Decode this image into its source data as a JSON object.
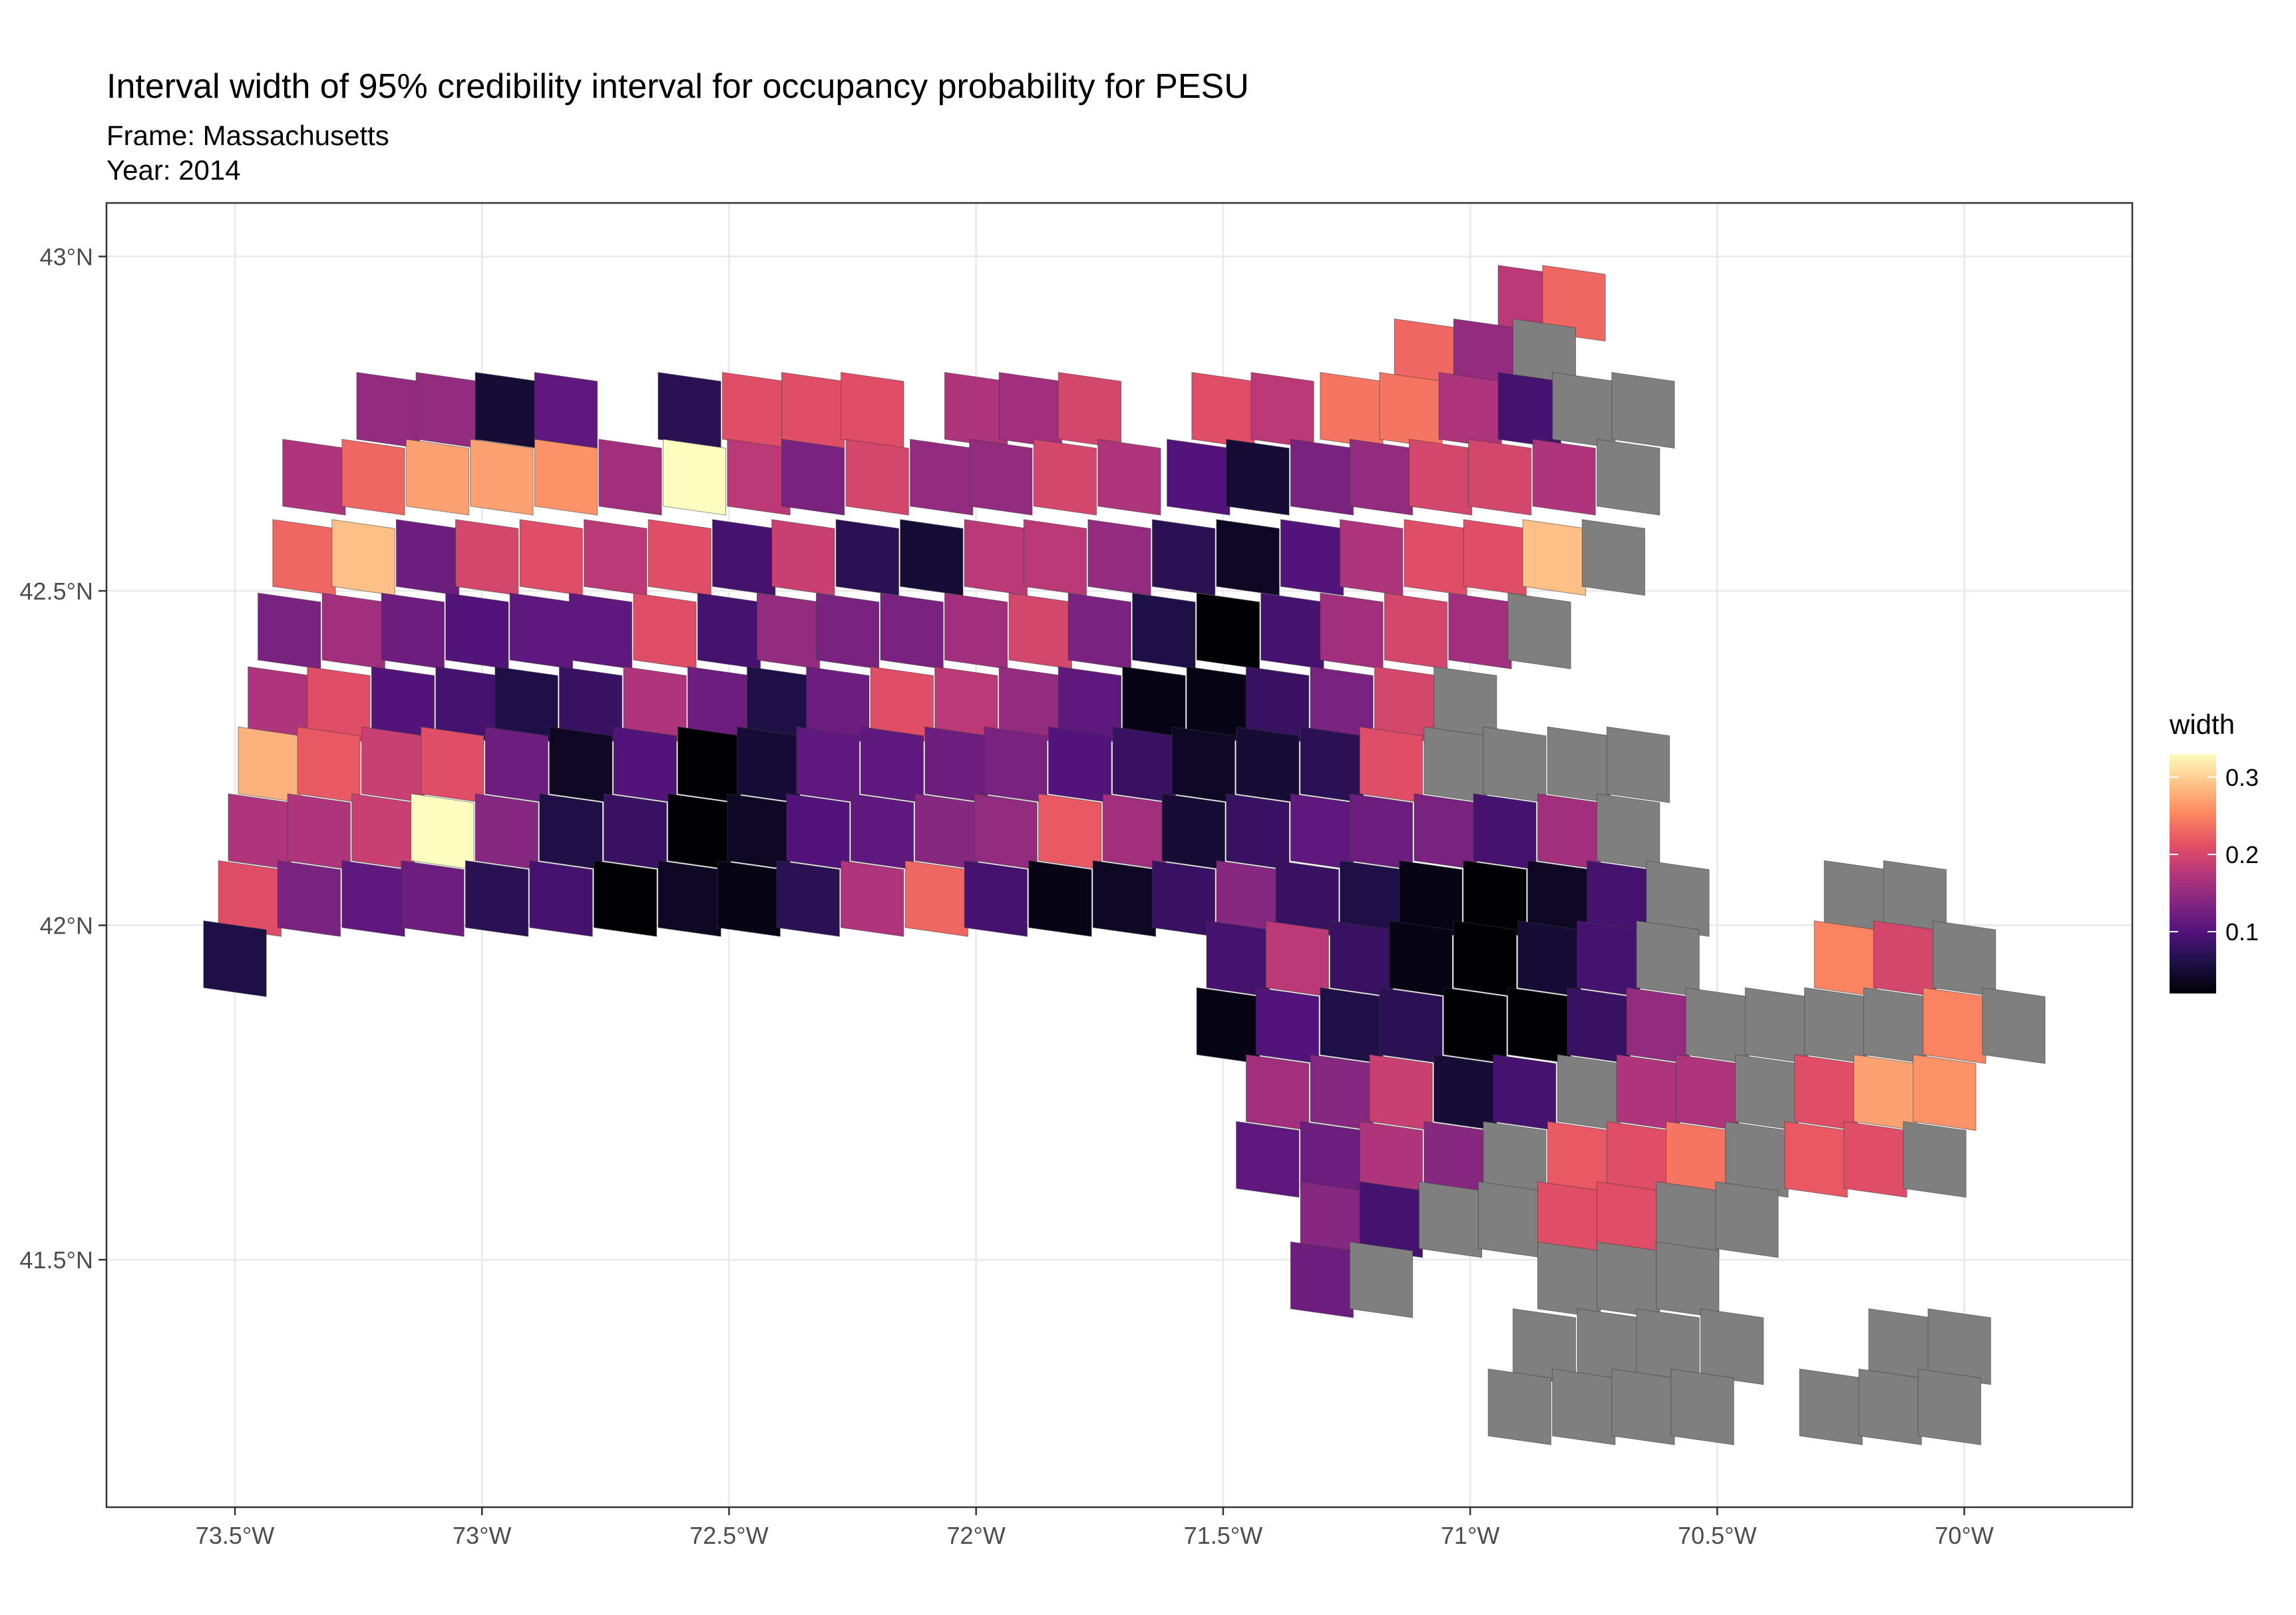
{
  "title": "Interval width of 95% credibility interval for occupancy probability for PESU",
  "subtitle_frame": "Frame: Massachusetts",
  "subtitle_year": "Year: 2014",
  "colors": {
    "na_fill": "#7f7f7f",
    "palette": [
      "#000004",
      "#1c1044",
      "#4f127b",
      "#812581",
      "#b5367a",
      "#e55064",
      "#fb8761",
      "#fec287",
      "#fcfdbf"
    ]
  },
  "chart_data": {
    "type": "heatmap",
    "xlabel": "",
    "ylabel": "",
    "xlim": [
      -73.76,
      -69.66
    ],
    "ylim": [
      41.13,
      43.08
    ],
    "x_ticks": [
      -73.5,
      -73.0,
      -72.5,
      -72.0,
      -71.5,
      -71.0,
      -70.5,
      -70.0
    ],
    "x_tick_labels": [
      "73.5°W",
      "73°W",
      "72.5°W",
      "72°W",
      "71.5°W",
      "71°W",
      "70.5°W",
      "70°W"
    ],
    "y_ticks": [
      41.5,
      42.0,
      42.5,
      43.0
    ],
    "y_tick_labels": [
      "41.5°N",
      "42°N",
      "42.5°N",
      "43°N"
    ],
    "grid": true,
    "legend": {
      "title": "width",
      "placement": "right",
      "min": 0.02,
      "max": 0.33,
      "ticks": [
        0.1,
        0.2,
        0.3
      ],
      "tick_labels": [
        "0.1",
        "0.2",
        "0.3"
      ]
    },
    "grid_rows": [
      {
        "y": 42.93,
        "cells": [
          [
            -70.88,
            0.18
          ],
          [
            -70.79,
            0.23
          ]
        ]
      },
      {
        "y": 42.85,
        "cells": [
          [
            -71.09,
            0.23
          ],
          [
            -70.97,
            0.15
          ],
          [
            -70.85,
            null
          ]
        ]
      },
      {
        "y": 42.77,
        "cells": [
          [
            -73.19,
            0.15
          ],
          [
            -73.07,
            0.15
          ],
          [
            -72.95,
            0.05
          ],
          [
            -72.83,
            0.11
          ],
          [
            -72.58,
            0.07
          ],
          [
            -72.45,
            0.21
          ],
          [
            -72.33,
            0.21
          ],
          [
            -72.21,
            0.21
          ],
          [
            -72.0,
            0.17
          ],
          [
            -71.89,
            0.16
          ],
          [
            -71.77,
            0.2
          ],
          [
            -71.5,
            0.21
          ],
          [
            -71.38,
            0.18
          ],
          [
            -71.24,
            0.24
          ],
          [
            -71.12,
            0.24
          ],
          [
            -71.0,
            0.17
          ],
          [
            -70.88,
            0.09
          ],
          [
            -70.77,
            null
          ],
          [
            -70.65,
            null
          ]
        ]
      },
      {
        "y": 42.67,
        "cells": [
          [
            -73.34,
            0.17
          ],
          [
            -73.22,
            0.23
          ],
          [
            -73.09,
            0.27
          ],
          [
            -72.96,
            0.27
          ],
          [
            -72.83,
            0.26
          ],
          [
            -72.7,
            0.16
          ],
          [
            -72.57,
            0.33
          ],
          [
            -72.44,
            0.18
          ],
          [
            -72.33,
            0.13
          ],
          [
            -72.2,
            0.2
          ],
          [
            -72.07,
            0.15
          ],
          [
            -71.95,
            0.15
          ],
          [
            -71.82,
            0.2
          ],
          [
            -71.69,
            0.17
          ],
          [
            -71.55,
            0.1
          ],
          [
            -71.43,
            0.05
          ],
          [
            -71.3,
            0.13
          ],
          [
            -71.18,
            0.15
          ],
          [
            -71.06,
            0.2
          ],
          [
            -70.94,
            0.2
          ],
          [
            -70.81,
            0.17
          ],
          [
            -70.68,
            null
          ]
        ]
      },
      {
        "y": 42.55,
        "cells": [
          [
            -73.36,
            0.23
          ],
          [
            -73.24,
            0.29
          ],
          [
            -73.11,
            0.12
          ],
          [
            -72.99,
            0.2
          ],
          [
            -72.86,
            0.21
          ],
          [
            -72.73,
            0.18
          ],
          [
            -72.6,
            0.21
          ],
          [
            -72.47,
            0.09
          ],
          [
            -72.35,
            0.19
          ],
          [
            -72.22,
            0.07
          ],
          [
            -72.09,
            0.05
          ],
          [
            -71.96,
            0.18
          ],
          [
            -71.84,
            0.18
          ],
          [
            -71.71,
            0.15
          ],
          [
            -71.58,
            0.07
          ],
          [
            -71.45,
            0.04
          ],
          [
            -71.32,
            0.1
          ],
          [
            -71.2,
            0.17
          ],
          [
            -71.07,
            0.21
          ],
          [
            -70.95,
            0.21
          ],
          [
            -70.83,
            0.29
          ],
          [
            -70.71,
            null
          ]
        ]
      },
      {
        "y": 42.44,
        "cells": [
          [
            -73.39,
            0.13
          ],
          [
            -73.26,
            0.16
          ],
          [
            -73.14,
            0.12
          ],
          [
            -73.01,
            0.1
          ],
          [
            -72.88,
            0.11
          ],
          [
            -72.76,
            0.11
          ],
          [
            -72.63,
            0.21
          ],
          [
            -72.5,
            0.09
          ],
          [
            -72.38,
            0.15
          ],
          [
            -72.26,
            0.13
          ],
          [
            -72.13,
            0.13
          ],
          [
            -72.0,
            0.16
          ],
          [
            -71.87,
            0.2
          ],
          [
            -71.75,
            0.13
          ],
          [
            -71.62,
            0.06
          ],
          [
            -71.49,
            0.02
          ],
          [
            -71.36,
            0.09
          ],
          [
            -71.24,
            0.16
          ],
          [
            -71.11,
            0.2
          ],
          [
            -70.98,
            0.16
          ],
          [
            -70.86,
            null
          ]
        ]
      },
      {
        "y": 42.33,
        "cells": [
          [
            -73.41,
            0.17
          ],
          [
            -73.29,
            0.21
          ],
          [
            -73.16,
            0.1
          ],
          [
            -73.03,
            0.09
          ],
          [
            -72.91,
            0.06
          ],
          [
            -72.78,
            0.08
          ],
          [
            -72.65,
            0.17
          ],
          [
            -72.52,
            0.12
          ],
          [
            -72.4,
            0.06
          ],
          [
            -72.28,
            0.12
          ],
          [
            -72.15,
            0.21
          ],
          [
            -72.02,
            0.18
          ],
          [
            -71.89,
            0.15
          ],
          [
            -71.77,
            0.11
          ],
          [
            -71.64,
            0.03
          ],
          [
            -71.51,
            0.03
          ],
          [
            -71.39,
            0.08
          ],
          [
            -71.26,
            0.13
          ],
          [
            -71.13,
            0.2
          ],
          [
            -71.01,
            null
          ]
        ]
      },
      {
        "y": 42.24,
        "cells": [
          [
            -73.43,
            0.28
          ],
          [
            -73.31,
            0.22
          ],
          [
            -73.18,
            0.19
          ],
          [
            -73.06,
            0.21
          ],
          [
            -72.93,
            0.12
          ],
          [
            -72.8,
            0.04
          ],
          [
            -72.67,
            0.1
          ],
          [
            -72.54,
            0.02
          ],
          [
            -72.42,
            0.05
          ],
          [
            -72.3,
            0.11
          ],
          [
            -72.17,
            0.11
          ],
          [
            -72.04,
            0.12
          ],
          [
            -71.92,
            0.13
          ],
          [
            -71.79,
            0.1
          ],
          [
            -71.66,
            0.08
          ],
          [
            -71.54,
            0.04
          ],
          [
            -71.41,
            0.05
          ],
          [
            -71.28,
            0.07
          ],
          [
            -71.16,
            0.21
          ],
          [
            -71.03,
            null
          ],
          [
            -70.91,
            null
          ],
          [
            -70.78,
            null
          ],
          [
            -70.66,
            null
          ]
        ]
      },
      {
        "y": 42.14,
        "cells": [
          [
            -73.45,
            0.17
          ],
          [
            -73.33,
            0.17
          ],
          [
            -73.2,
            0.19
          ],
          [
            -73.08,
            0.33
          ],
          [
            -72.95,
            0.14
          ],
          [
            -72.82,
            0.06
          ],
          [
            -72.69,
            0.08
          ],
          [
            -72.56,
            0.02
          ],
          [
            -72.44,
            0.04
          ],
          [
            -72.32,
            0.1
          ],
          [
            -72.19,
            0.11
          ],
          [
            -72.06,
            0.14
          ],
          [
            -71.94,
            0.15
          ],
          [
            -71.81,
            0.22
          ],
          [
            -71.68,
            0.16
          ],
          [
            -71.56,
            0.05
          ],
          [
            -71.43,
            0.08
          ],
          [
            -71.3,
            0.11
          ],
          [
            -71.18,
            0.12
          ],
          [
            -71.05,
            0.13
          ],
          [
            -70.93,
            0.09
          ],
          [
            -70.8,
            0.16
          ],
          [
            -70.68,
            null
          ]
        ]
      },
      {
        "y": 42.04,
        "cells": [
          [
            -73.47,
            0.21
          ],
          [
            -73.35,
            0.13
          ],
          [
            -73.22,
            0.11
          ],
          [
            -73.1,
            0.12
          ],
          [
            -72.97,
            0.07
          ],
          [
            -72.84,
            0.09
          ],
          [
            -72.71,
            0.02
          ],
          [
            -72.58,
            0.04
          ],
          [
            -72.46,
            0.03
          ],
          [
            -72.34,
            0.07
          ],
          [
            -72.21,
            0.17
          ],
          [
            -72.08,
            0.23
          ],
          [
            -71.96,
            0.09
          ],
          [
            -71.83,
            0.03
          ],
          [
            -71.7,
            0.04
          ],
          [
            -71.58,
            0.08
          ],
          [
            -71.45,
            0.14
          ],
          [
            -71.33,
            0.08
          ],
          [
            -71.2,
            0.06
          ],
          [
            -71.08,
            0.03
          ],
          [
            -70.95,
            0.02
          ],
          [
            -70.82,
            0.04
          ],
          [
            -70.7,
            0.09
          ],
          [
            -70.58,
            null
          ],
          [
            -70.22,
            null
          ],
          [
            -70.1,
            null
          ]
        ]
      },
      {
        "y": 41.95,
        "cells": [
          [
            -73.5,
            0.06
          ],
          [
            -71.47,
            0.09
          ],
          [
            -71.35,
            0.18
          ],
          [
            -71.22,
            0.08
          ],
          [
            -71.1,
            0.03
          ],
          [
            -70.97,
            0.02
          ],
          [
            -70.84,
            0.05
          ],
          [
            -70.72,
            0.09
          ],
          [
            -70.6,
            null
          ],
          [
            -70.24,
            0.25
          ],
          [
            -70.12,
            0.2
          ],
          [
            -70.0,
            null
          ]
        ]
      },
      {
        "y": 41.85,
        "cells": [
          [
            -71.49,
            0.03
          ],
          [
            -71.37,
            0.1
          ],
          [
            -71.24,
            0.06
          ],
          [
            -71.12,
            0.07
          ],
          [
            -70.99,
            0.02
          ],
          [
            -70.86,
            0.02
          ],
          [
            -70.74,
            0.08
          ],
          [
            -70.62,
            0.15
          ],
          [
            -70.5,
            null
          ],
          [
            -70.38,
            null
          ],
          [
            -70.26,
            null
          ],
          [
            -70.14,
            null
          ],
          [
            -70.02,
            0.25
          ],
          [
            -69.9,
            null
          ]
        ]
      },
      {
        "y": 41.75,
        "cells": [
          [
            -71.39,
            0.16
          ],
          [
            -71.26,
            0.14
          ],
          [
            -71.14,
            0.19
          ],
          [
            -71.01,
            0.05
          ],
          [
            -70.89,
            0.09
          ],
          [
            -70.76,
            null
          ],
          [
            -70.64,
            0.17
          ],
          [
            -70.52,
            0.17
          ],
          [
            -70.4,
            null
          ],
          [
            -70.28,
            0.21
          ],
          [
            -70.16,
            0.27
          ],
          [
            -70.04,
            0.26
          ]
        ]
      },
      {
        "y": 41.65,
        "cells": [
          [
            -71.41,
            0.11
          ],
          [
            -71.28,
            0.12
          ],
          [
            -71.16,
            0.17
          ],
          [
            -71.03,
            0.14
          ],
          [
            -70.91,
            null
          ],
          [
            -70.78,
            0.22
          ],
          [
            -70.66,
            0.21
          ],
          [
            -70.54,
            0.24
          ],
          [
            -70.42,
            null
          ],
          [
            -70.3,
            0.22
          ],
          [
            -70.18,
            0.21
          ],
          [
            -70.06,
            null
          ]
        ]
      },
      {
        "y": 41.56,
        "cells": [
          [
            -71.28,
            0.14
          ],
          [
            -71.16,
            0.09
          ],
          [
            -71.04,
            null
          ],
          [
            -70.92,
            null
          ],
          [
            -70.8,
            0.21
          ],
          [
            -70.68,
            0.21
          ],
          [
            -70.56,
            null
          ],
          [
            -70.44,
            null
          ]
        ]
      },
      {
        "y": 41.47,
        "cells": [
          [
            -71.3,
            0.12
          ],
          [
            -71.18,
            null
          ],
          [
            -70.8,
            null
          ],
          [
            -70.68,
            null
          ],
          [
            -70.56,
            null
          ]
        ]
      },
      {
        "y": 41.37,
        "cells": [
          [
            -70.85,
            null
          ],
          [
            -70.72,
            null
          ],
          [
            -70.6,
            null
          ],
          [
            -70.47,
            null
          ],
          [
            -70.13,
            null
          ],
          [
            -70.01,
            null
          ]
        ]
      },
      {
        "y": 41.28,
        "cells": [
          [
            -70.9,
            null
          ],
          [
            -70.77,
            null
          ],
          [
            -70.65,
            null
          ],
          [
            -70.53,
            null
          ],
          [
            -70.27,
            null
          ],
          [
            -70.15,
            null
          ],
          [
            -70.03,
            null
          ]
        ]
      }
    ]
  }
}
